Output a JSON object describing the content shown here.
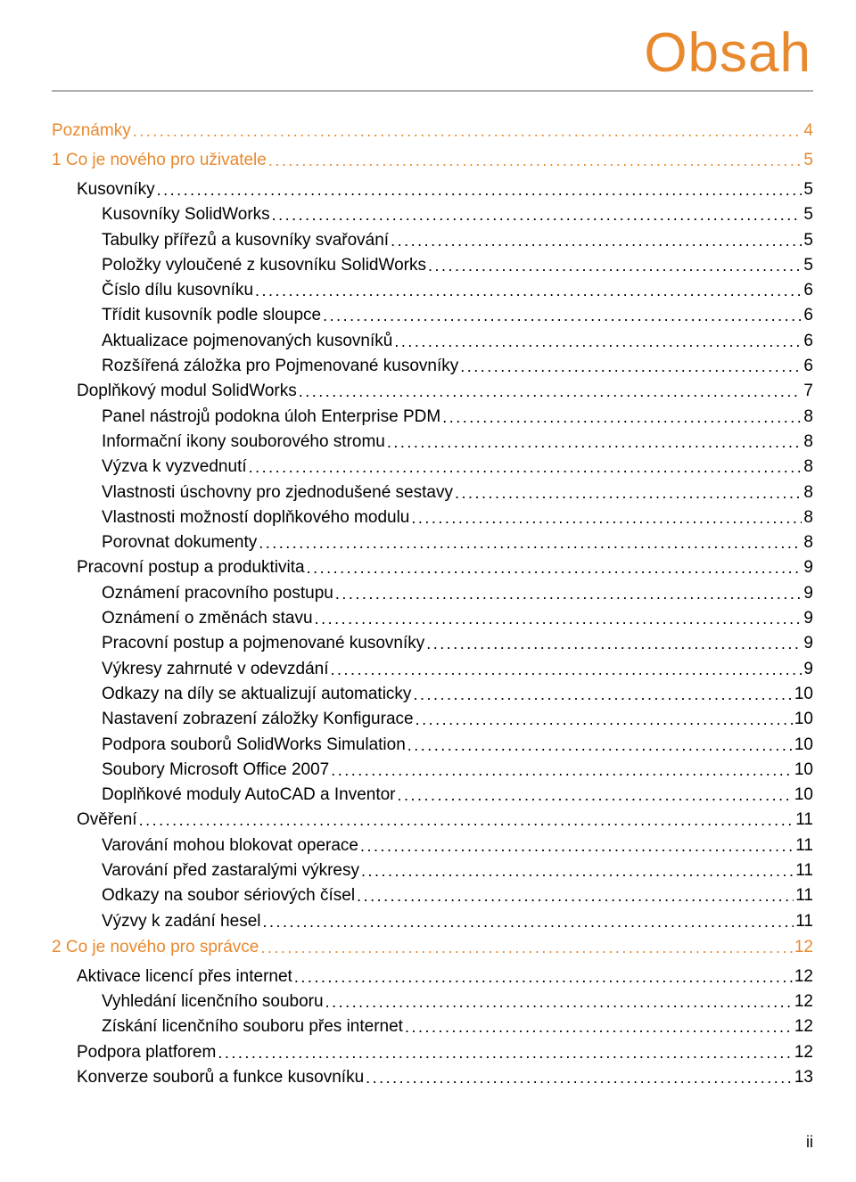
{
  "title": "Obsah",
  "colors": {
    "accent": "#e8892e",
    "text": "#000000",
    "rule": "#b0b0b0",
    "leader": "#000000"
  },
  "page_number": "ii",
  "toc": [
    {
      "label": "Poznámky",
      "page": "4",
      "indent": 0,
      "color": "accent",
      "section": true
    },
    {
      "label": "1 Co je nového pro uživatele",
      "page": "5",
      "indent": 0,
      "color": "accent",
      "section": true
    },
    {
      "label": "Kusovníky",
      "page": "5",
      "indent": 1,
      "color": "text"
    },
    {
      "label": "Kusovníky SolidWorks",
      "page": "5",
      "indent": 2,
      "color": "text"
    },
    {
      "label": "Tabulky přířezů a kusovníky svařování",
      "page": "5",
      "indent": 2,
      "color": "text"
    },
    {
      "label": "Položky vyloučené z kusovníku SolidWorks",
      "page": "5",
      "indent": 2,
      "color": "text"
    },
    {
      "label": "Číslo dílu kusovníku",
      "page": "6",
      "indent": 2,
      "color": "text"
    },
    {
      "label": "Třídit kusovník podle sloupce",
      "page": "6",
      "indent": 2,
      "color": "text"
    },
    {
      "label": "Aktualizace pojmenovaných kusovníků",
      "page": "6",
      "indent": 2,
      "color": "text"
    },
    {
      "label": "Rozšířená záložka pro Pojmenované kusovníky",
      "page": "6",
      "indent": 2,
      "color": "text"
    },
    {
      "label": "Doplňkový modul SolidWorks",
      "page": "7",
      "indent": 1,
      "color": "text"
    },
    {
      "label": "Panel nástrojů podokna úloh Enterprise PDM",
      "page": "8",
      "indent": 2,
      "color": "text"
    },
    {
      "label": "Informační ikony souborového stromu",
      "page": "8",
      "indent": 2,
      "color": "text"
    },
    {
      "label": "Výzva k vyzvednutí",
      "page": "8",
      "indent": 2,
      "color": "text"
    },
    {
      "label": "Vlastnosti úschovny pro zjednodušené sestavy",
      "page": "8",
      "indent": 2,
      "color": "text"
    },
    {
      "label": "Vlastnosti možností doplňkového modulu",
      "page": "8",
      "indent": 2,
      "color": "text"
    },
    {
      "label": "Porovnat dokumenty",
      "page": "8",
      "indent": 2,
      "color": "text"
    },
    {
      "label": "Pracovní postup a produktivita",
      "page": "9",
      "indent": 1,
      "color": "text"
    },
    {
      "label": "Oznámení pracovního postupu",
      "page": "9",
      "indent": 2,
      "color": "text"
    },
    {
      "label": "Oznámení o změnách stavu",
      "page": "9",
      "indent": 2,
      "color": "text"
    },
    {
      "label": "Pracovní postup a pojmenované kusovníky",
      "page": "9",
      "indent": 2,
      "color": "text"
    },
    {
      "label": "Výkresy zahrnuté v odevzdání",
      "page": "9",
      "indent": 2,
      "color": "text"
    },
    {
      "label": "Odkazy na díly se aktualizují automaticky",
      "page": "10",
      "indent": 2,
      "color": "text"
    },
    {
      "label": "Nastavení zobrazení záložky Konfigurace",
      "page": "10",
      "indent": 2,
      "color": "text"
    },
    {
      "label": "Podpora souborů SolidWorks Simulation",
      "page": "10",
      "indent": 2,
      "color": "text"
    },
    {
      "label": "Soubory Microsoft Office 2007",
      "page": "10",
      "indent": 2,
      "color": "text"
    },
    {
      "label": "Doplňkové moduly AutoCAD a Inventor",
      "page": "10",
      "indent": 2,
      "color": "text"
    },
    {
      "label": "Ověření",
      "page": "11",
      "indent": 1,
      "color": "text"
    },
    {
      "label": "Varování mohou blokovat operace",
      "page": "11",
      "indent": 2,
      "color": "text"
    },
    {
      "label": "Varování před zastaralými výkresy",
      "page": "11",
      "indent": 2,
      "color": "text"
    },
    {
      "label": "Odkazy na soubor sériových čísel",
      "page": "11",
      "indent": 2,
      "color": "text"
    },
    {
      "label": "Výzvy k zadání hesel",
      "page": "11",
      "indent": 2,
      "color": "text"
    },
    {
      "label": "2 Co je nového pro správce",
      "page": "12",
      "indent": 0,
      "color": "accent",
      "section": true,
      "gap_above": true
    },
    {
      "label": "Aktivace licencí přes internet",
      "page": "12",
      "indent": 1,
      "color": "text"
    },
    {
      "label": "Vyhledání licenčního souboru",
      "page": "12",
      "indent": 2,
      "color": "text"
    },
    {
      "label": "Získání licenčního souboru přes internet",
      "page": "12",
      "indent": 2,
      "color": "text"
    },
    {
      "label": "Podpora platforem",
      "page": "12",
      "indent": 1,
      "color": "text"
    },
    {
      "label": "Konverze souborů a funkce kusovníku",
      "page": "13",
      "indent": 1,
      "color": "text"
    }
  ]
}
